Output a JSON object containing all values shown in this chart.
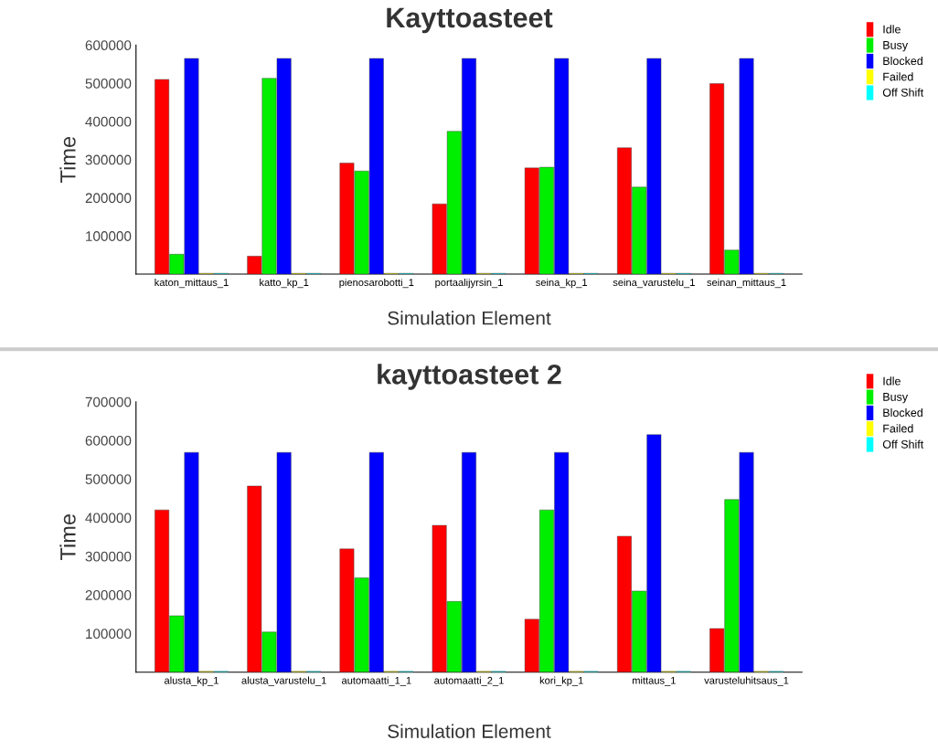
{
  "chart_data": [
    {
      "type": "bar",
      "title": "Kayttoasteet",
      "xlabel": "Simulation Element",
      "ylabel": "Time",
      "categories": [
        "katon_mittaus_1",
        "katto_kp_1",
        "pienosarobotti_1",
        "portaalijyrsin_1",
        "seina_kp_1",
        "seina_varustelu_1",
        "seinan_mittaus_1"
      ],
      "series": [
        {
          "name": "Idle",
          "color": "#ff0000",
          "values": [
            510000,
            47000,
            291000,
            184000,
            278000,
            331000,
            499000
          ]
        },
        {
          "name": "Busy",
          "color": "#00ee00",
          "values": [
            52000,
            513000,
            270000,
            374000,
            280000,
            228000,
            63000
          ]
        },
        {
          "name": "Blocked",
          "color": "#0000ff",
          "values": [
            565000,
            565000,
            565000,
            565000,
            565000,
            565000,
            565000
          ]
        },
        {
          "name": "Failed",
          "color": "#ffff00",
          "values": [
            2000,
            2000,
            2000,
            2000,
            2000,
            2000,
            2000
          ]
        },
        {
          "name": "Off Shift",
          "color": "#00ffff",
          "values": [
            2000,
            2000,
            2000,
            2000,
            2000,
            2000,
            2000
          ]
        }
      ],
      "ylim": [
        0,
        600000
      ],
      "yticks": [
        100000,
        200000,
        300000,
        400000,
        500000,
        600000
      ],
      "grid": false,
      "legend": "top right"
    },
    {
      "type": "bar",
      "title": "kayttoasteet 2",
      "xlabel": "Simulation Element",
      "ylabel": "Time",
      "categories": [
        "alusta_kp_1",
        "alusta_varustelu_1",
        "automaatti_1_1",
        "automaatti_2_1",
        "kori_kp_1",
        "mittaus_1",
        "varusteluhitsaus_1"
      ],
      "series": [
        {
          "name": "Idle",
          "color": "#ff0000",
          "values": [
            420000,
            482000,
            319000,
            380000,
            137000,
            352000,
            113000
          ]
        },
        {
          "name": "Busy",
          "color": "#00ee00",
          "values": [
            146000,
            104000,
            244000,
            183000,
            420000,
            210000,
            447000
          ]
        },
        {
          "name": "Blocked",
          "color": "#0000ff",
          "values": [
            569000,
            569000,
            569000,
            569000,
            569000,
            615000,
            569000
          ]
        },
        {
          "name": "Failed",
          "color": "#ffff00",
          "values": [
            2000,
            2000,
            2000,
            2000,
            2000,
            2000,
            2000
          ]
        },
        {
          "name": "Off Shift",
          "color": "#00ffff",
          "values": [
            2000,
            2000,
            2000,
            2000,
            2000,
            2000,
            2000
          ]
        }
      ],
      "ylim": [
        0,
        700000
      ],
      "yticks": [
        100000,
        200000,
        300000,
        400000,
        500000,
        600000,
        700000
      ],
      "grid": false,
      "legend": "top right"
    }
  ]
}
